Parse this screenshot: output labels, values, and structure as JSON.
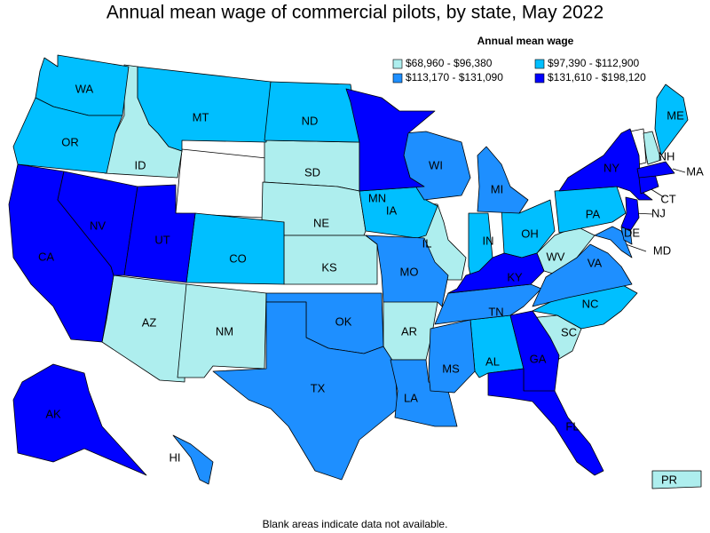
{
  "title": "Annual mean wage of commercial pilots, by state, May 2022",
  "legend": {
    "title": "Annual mean wage",
    "classes": [
      {
        "label": "$68,960 - $96,380",
        "color": "#aeeeee",
        "states": [
          "ID",
          "SD",
          "NE",
          "KS",
          "IL",
          "AZ",
          "NM",
          "AR",
          "WV",
          "SC",
          "NH",
          "PR"
        ]
      },
      {
        "label": "$97,390 - $112,900",
        "color": "#00bfff",
        "states": [
          "WA",
          "OR",
          "MT",
          "ND",
          "IA",
          "CO",
          "IN",
          "OH",
          "PA",
          "NC",
          "AL",
          "ME"
        ]
      },
      {
        "label": "$113,170 - $131,090",
        "color": "#1e8fff",
        "states": [
          "WI",
          "MI",
          "MO",
          "OK",
          "TX",
          "LA",
          "MS",
          "TN",
          "VA",
          "MD",
          "DE",
          "HI"
        ]
      },
      {
        "label": "$131,610 - $198,120",
        "color": "#0000ff",
        "states": [
          "CA",
          "NV",
          "UT",
          "MN",
          "KY",
          "GA",
          "FL",
          "NY",
          "NJ",
          "CT",
          "MA",
          "AK"
        ]
      }
    ]
  },
  "footnote": "Blank areas indicate data not available."
}
